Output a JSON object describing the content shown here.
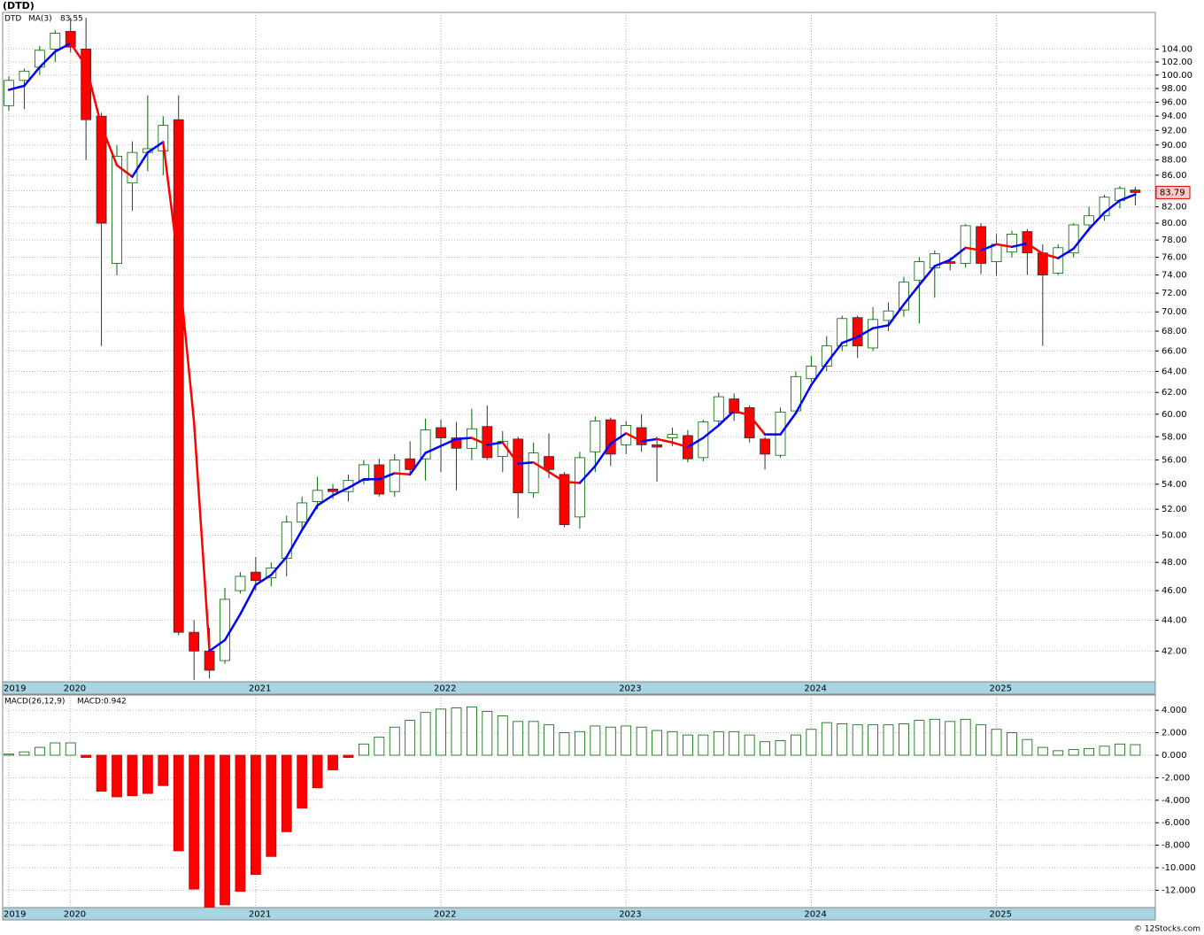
{
  "title": "(DTD)",
  "footer": "© 12Stocks.com",
  "chart_data": [
    {
      "type": "candlestick",
      "name": "DTD",
      "log_scale": true,
      "grid": true,
      "up_color": "#006400",
      "down_color": "#ff0000",
      "categories": [
        "2019",
        null,
        null,
        null,
        "2020",
        null,
        null,
        null,
        null,
        null,
        null,
        null,
        null,
        null,
        null,
        null,
        "2021",
        null,
        null,
        null,
        null,
        null,
        null,
        null,
        null,
        null,
        null,
        null,
        "2022",
        null,
        null,
        null,
        null,
        null,
        null,
        null,
        null,
        null,
        null,
        null,
        "2023",
        null,
        null,
        null,
        null,
        null,
        null,
        null,
        null,
        null,
        null,
        null,
        "2024",
        null,
        null,
        null,
        null,
        null,
        null,
        null,
        null,
        null,
        null,
        null,
        "2025",
        null,
        null,
        null,
        null,
        null,
        null,
        null,
        null,
        null
      ],
      "open": [
        95.5,
        99.2,
        101.2,
        104,
        106.8,
        104,
        94,
        75.3,
        85,
        89,
        89.2,
        93.5,
        43.2,
        42,
        41.4,
        46,
        47.3,
        46.9,
        48.3,
        51,
        52.6,
        53.6,
        53.4,
        54.3,
        55.6,
        53.4,
        56.1,
        56.1,
        58.8,
        57.9,
        57,
        58.9,
        56.3,
        57.8,
        53.3,
        56.3,
        54.8,
        51.4,
        56.7,
        59.5,
        57.3,
        58.8,
        57.3,
        57.9,
        58.1,
        56.2,
        59.4,
        61.4,
        60.6,
        57.8,
        56.4,
        60.3,
        63.3,
        64.5,
        66.5,
        69.4,
        66.3,
        69.1,
        70.2,
        73.4,
        74.8,
        75.5,
        75.3,
        79.6,
        75.5,
        76.6,
        79,
        76.5,
        74.2,
        76.5,
        79.8,
        80.9,
        82.8,
        84.1
      ],
      "high": [
        99.8,
        101,
        104.5,
        107,
        109,
        109,
        94.5,
        90,
        90.5,
        97,
        94,
        97,
        44,
        43.5,
        46.2,
        47.3,
        48.4,
        48,
        51.5,
        53,
        54.6,
        54,
        54.8,
        56,
        56.1,
        56.5,
        57.6,
        59.6,
        59.5,
        59.3,
        60.5,
        60.8,
        58.5,
        58,
        57.5,
        58.3,
        55,
        56.7,
        59.8,
        59.7,
        59.4,
        60,
        58,
        58.8,
        58.6,
        59.5,
        62,
        61.9,
        60.8,
        58,
        60.6,
        64,
        65.5,
        67.5,
        69.6,
        69.6,
        70.5,
        71,
        73.8,
        76,
        76.8,
        76,
        79.9,
        80,
        78.7,
        79.1,
        79.3,
        77.5,
        77.5,
        80,
        82,
        83.5,
        84.6,
        84.5
      ],
      "low": [
        94.8,
        95,
        100,
        102,
        103.5,
        88,
        66.5,
        74,
        81.5,
        86.5,
        86,
        43,
        40.2,
        40.3,
        41.2,
        45.8,
        46,
        46.3,
        47,
        50.5,
        52,
        52.8,
        52.6,
        54,
        53,
        53,
        54.7,
        54.3,
        55,
        53.5,
        56,
        56,
        55,
        51.3,
        52.9,
        54.5,
        50.6,
        50.5,
        55,
        55.5,
        56.5,
        56.7,
        54.2,
        57.2,
        55.8,
        55.9,
        59,
        59.4,
        57.5,
        55.2,
        56.2,
        60,
        63,
        64,
        66,
        65.3,
        66,
        68,
        69.5,
        68.8,
        71.5,
        74.5,
        74.8,
        74.1,
        73.9,
        76,
        74,
        66.5,
        74,
        76,
        79,
        80.3,
        81.8,
        82.2
      ],
      "close": [
        99.2,
        100.6,
        103.8,
        106.5,
        104.3,
        93.5,
        80,
        88.5,
        89,
        89.5,
        92.7,
        43.2,
        42,
        40.8,
        45.4,
        47,
        46.7,
        47.6,
        51,
        52.5,
        53.5,
        53.4,
        54.3,
        55.6,
        53.2,
        56,
        55.2,
        58.6,
        57.9,
        57,
        58.7,
        56.2,
        57.6,
        53.3,
        56.6,
        55.2,
        50.8,
        56.2,
        59.4,
        56.5,
        59,
        57.3,
        57.1,
        58.2,
        56.1,
        59.3,
        61.6,
        60.1,
        57.9,
        56.5,
        60.2,
        63.5,
        64.5,
        66.5,
        69.3,
        66.5,
        69.2,
        70.1,
        73.2,
        75.5,
        76.4,
        75.3,
        79.7,
        75.3,
        77.5,
        78.7,
        76.5,
        74,
        77.1,
        79.8,
        80.9,
        83.2,
        84.3,
        83.79
      ],
      "ma": {
        "name": "MA(3)",
        "up_color": "#0000ff",
        "down_color": "#ff0000",
        "values": [
          97.8,
          98.4,
          101.2,
          103.6,
          104.9,
          101.4,
          92.6,
          87.3,
          85.8,
          89,
          90.4,
          75.1,
          59.3,
          42,
          42.7,
          44.4,
          46.4,
          47.1,
          48.4,
          50.4,
          52.3,
          53.1,
          53.7,
          54.4,
          54.4,
          54.9,
          54.8,
          56.6,
          57.2,
          57.8,
          57.9,
          57.3,
          57.5,
          55.7,
          55.8,
          55,
          54.2,
          54.1,
          55.5,
          57.4,
          58.3,
          57.6,
          57.8,
          57.5,
          57.1,
          57.9,
          59,
          60.3,
          59.9,
          58.2,
          58.2,
          60.1,
          62.7,
          64.8,
          66.8,
          67.4,
          68.3,
          68.6,
          70.8,
          72.9,
          75,
          75.7,
          77.1,
          76.8,
          77.5,
          77.2,
          77.6,
          76.4,
          75.9,
          77,
          79.3,
          81.3,
          82.8,
          83.55
        ]
      },
      "ylim": [
        40.1,
        109.9
      ],
      "yticks": [
        {
          "value": 42,
          "label": "42.00"
        },
        {
          "value": 44,
          "label": "44.00"
        },
        {
          "value": 46,
          "label": "46.00"
        },
        {
          "value": 48,
          "label": "48.00"
        },
        {
          "value": 50,
          "label": "50.00"
        },
        {
          "value": 52,
          "label": "52.00"
        },
        {
          "value": 54,
          "label": "54.00"
        },
        {
          "value": 56,
          "label": "56.00"
        },
        {
          "value": 58,
          "label": "58.00"
        },
        {
          "value": 60,
          "label": "60.00"
        },
        {
          "value": 62,
          "label": "62.00"
        },
        {
          "value": 64,
          "label": "64.00"
        },
        {
          "value": 66,
          "label": "66.00"
        },
        {
          "value": 68,
          "label": "68.00"
        },
        {
          "value": 70,
          "label": "70.00"
        },
        {
          "value": 72,
          "label": "72.00"
        },
        {
          "value": 74,
          "label": "74.00"
        },
        {
          "value": 76,
          "label": "76.00"
        },
        {
          "value": 78,
          "label": "78.00"
        },
        {
          "value": 80,
          "label": "80.00"
        },
        {
          "value": 82,
          "label": "82.00"
        },
        {
          "value": 84,
          "label": "84.00"
        },
        {
          "value": 86,
          "label": "86.00"
        },
        {
          "value": 88,
          "label": "88.00"
        },
        {
          "value": 90,
          "label": "90.00"
        },
        {
          "value": 92,
          "label": "92.00"
        },
        {
          "value": 94,
          "label": "94.00"
        },
        {
          "value": 96,
          "label": "96.00"
        },
        {
          "value": 98,
          "label": "98.00"
        },
        {
          "value": 100,
          "label": "100.00"
        },
        {
          "value": 102,
          "label": "102.00"
        },
        {
          "value": 104,
          "label": "104.00"
        }
      ]
    },
    {
      "type": "bar",
      "name": "MACD(26,12,9)",
      "legend_value": "MACD:0.942",
      "grid": true,
      "up_color": "#006400",
      "down_color": "#ff0000",
      "categories": [
        "2019",
        null,
        null,
        null,
        "2020",
        null,
        null,
        null,
        null,
        null,
        null,
        null,
        null,
        null,
        null,
        null,
        "2021",
        null,
        null,
        null,
        null,
        null,
        null,
        null,
        null,
        null,
        null,
        null,
        "2022",
        null,
        null,
        null,
        null,
        null,
        null,
        null,
        null,
        null,
        null,
        null,
        "2023",
        null,
        null,
        null,
        null,
        null,
        null,
        null,
        null,
        null,
        null,
        null,
        "2024",
        null,
        null,
        null,
        null,
        null,
        null,
        null,
        null,
        null,
        null,
        null,
        "2025",
        null,
        null,
        null,
        null,
        null,
        null,
        null,
        null,
        null
      ],
      "values": [
        0.1,
        0.3,
        0.7,
        1.1,
        1.1,
        -0.2,
        -3.2,
        -3.7,
        -3.6,
        -3.4,
        -2.7,
        -8.5,
        -11.9,
        -13.5,
        -13.3,
        -12.1,
        -10.6,
        -9,
        -6.8,
        -4.7,
        -2.9,
        -1.3,
        -0.2,
        1,
        1.6,
        2.5,
        3.1,
        3.8,
        4.1,
        4.2,
        4.3,
        3.9,
        3.5,
        3,
        3,
        2.7,
        2,
        2.1,
        2.6,
        2.5,
        2.6,
        2.5,
        2.2,
        2.1,
        1.8,
        1.8,
        2.1,
        2.1,
        1.8,
        1.2,
        1.3,
        1.8,
        2.3,
        2.9,
        2.8,
        2.7,
        2.7,
        2.7,
        2.8,
        3.1,
        3.2,
        3,
        3.2,
        2.7,
        2.3,
        2,
        1.4,
        0.7,
        0.4,
        0.5,
        0.6,
        0.8,
        1,
        0.942
      ],
      "ylim": [
        -13.54,
        5.35
      ],
      "yticks": [
        {
          "value": 4,
          "label": "4.000"
        },
        {
          "value": 2,
          "label": "2.000"
        },
        {
          "value": 0,
          "label": "0.000"
        },
        {
          "value": -2,
          "label": "-2.000"
        },
        {
          "value": -4,
          "label": "-4.000"
        },
        {
          "value": -6,
          "label": "-6.000"
        },
        {
          "value": -8,
          "label": "-8.000"
        },
        {
          "value": -10,
          "label": "-10.000"
        },
        {
          "value": -12,
          "label": "-12.000"
        }
      ]
    }
  ]
}
